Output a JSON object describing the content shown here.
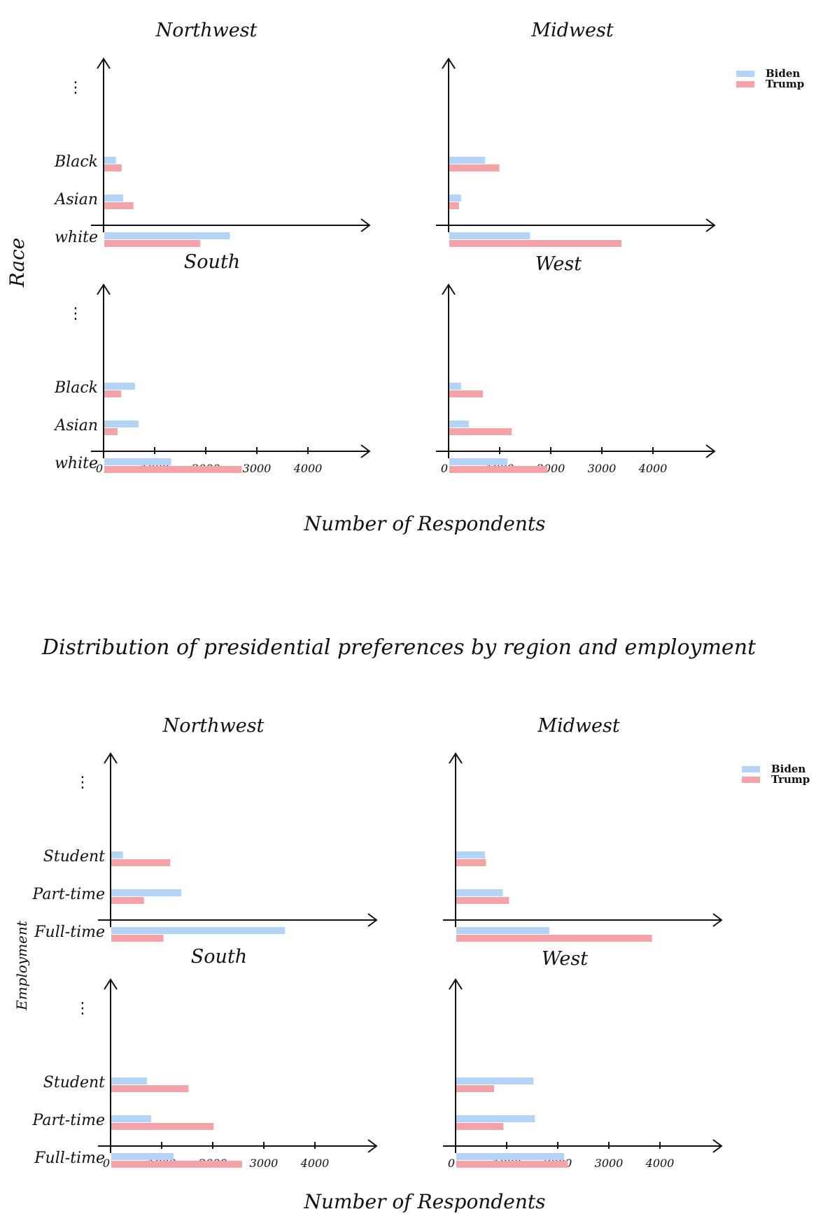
{
  "colors": {
    "biden": "#b3d4f7",
    "trump": "#f4a4a8",
    "axis": "#111111"
  },
  "figures": [
    {
      "id": "race",
      "title": "",
      "ylabel": "Race",
      "xlabel": "Number of Respondents",
      "legend": [
        "Biden",
        "Trump"
      ],
      "ellipsis": "⋮",
      "categories": [
        "Black",
        "Asian",
        "white"
      ],
      "xticks": [
        0,
        1000,
        2000,
        3000,
        4000
      ],
      "xtick_labels": [
        "0",
        "1000",
        "2000",
        "3000",
        "4000"
      ],
      "panels": [
        {
          "region": "Northwest",
          "biden": [
            230,
            370,
            2460
          ],
          "trump": [
            340,
            570,
            1880
          ]
        },
        {
          "region": "Midwest",
          "biden": [
            700,
            230,
            1580
          ],
          "trump": [
            980,
            190,
            3370
          ]
        },
        {
          "region": "South",
          "biden": [
            600,
            670,
            1310
          ],
          "trump": [
            330,
            260,
            2690
          ]
        },
        {
          "region": "West",
          "biden": [
            230,
            380,
            1140
          ],
          "trump": [
            660,
            1220,
            1920
          ]
        }
      ]
    },
    {
      "id": "employment",
      "title": "Distribution of presidential preferences by region and employment",
      "ylabel": "Employment",
      "xlabel": "Number of Respondents",
      "legend": [
        "Biden",
        "Trump"
      ],
      "ellipsis": "⋮",
      "categories": [
        "Student",
        "Part-time",
        "Full-time"
      ],
      "xticks": [
        0,
        1000,
        2000,
        3000,
        4000
      ],
      "xtick_labels": [
        "0",
        "1000",
        "2000",
        "3000",
        "4000"
      ],
      "panels": [
        {
          "region": "Northwest",
          "biden": [
            230,
            1370,
            3400
          ],
          "trump": [
            1150,
            640,
            1020
          ]
        },
        {
          "region": "Midwest",
          "biden": [
            560,
            910,
            1820
          ],
          "trump": [
            580,
            1030,
            3830
          ]
        },
        {
          "region": "South",
          "biden": [
            700,
            780,
            1220
          ],
          "trump": [
            1510,
            2000,
            2560
          ]
        },
        {
          "region": "West",
          "biden": [
            1510,
            1540,
            2110
          ],
          "trump": [
            740,
            920,
            2180
          ]
        }
      ]
    }
  ],
  "chart_data": [
    {
      "type": "bar",
      "orientation": "horizontal",
      "title": "",
      "ylabel": "Race",
      "xlabel": "Number of Respondents",
      "legend_placement": "top-right",
      "xlim": [
        0,
        5000
      ],
      "categories": [
        "Black",
        "Asian",
        "white"
      ],
      "facets": [
        "Northwest",
        "Midwest",
        "South",
        "West"
      ],
      "series": [
        {
          "name": "Biden",
          "values": {
            "Northwest": [
              230,
              370,
              2460
            ],
            "Midwest": [
              700,
              230,
              1580
            ],
            "South": [
              600,
              670,
              1310
            ],
            "West": [
              230,
              380,
              1140
            ]
          }
        },
        {
          "name": "Trump",
          "values": {
            "Northwest": [
              340,
              570,
              1880
            ],
            "Midwest": [
              980,
              190,
              3370
            ],
            "South": [
              330,
              260,
              2690
            ],
            "West": [
              660,
              1220,
              1920
            ]
          }
        }
      ]
    },
    {
      "type": "bar",
      "orientation": "horizontal",
      "title": "Distribution of presidential preferences by region and employment",
      "ylabel": "Employment",
      "xlabel": "Number of Respondents",
      "legend_placement": "top-right",
      "xlim": [
        0,
        5000
      ],
      "categories": [
        "Student",
        "Part-time",
        "Full-time"
      ],
      "facets": [
        "Northwest",
        "Midwest",
        "South",
        "West"
      ],
      "series": [
        {
          "name": "Biden",
          "values": {
            "Northwest": [
              230,
              1370,
              3400
            ],
            "Midwest": [
              560,
              910,
              1820
            ],
            "South": [
              700,
              780,
              1220
            ],
            "West": [
              1510,
              1540,
              2110
            ]
          }
        },
        {
          "name": "Trump",
          "values": {
            "Northwest": [
              1150,
              640,
              1020
            ],
            "Midwest": [
              580,
              1030,
              3830
            ],
            "South": [
              1510,
              2000,
              2560
            ],
            "West": [
              740,
              920,
              2180
            ]
          }
        }
      ]
    }
  ]
}
